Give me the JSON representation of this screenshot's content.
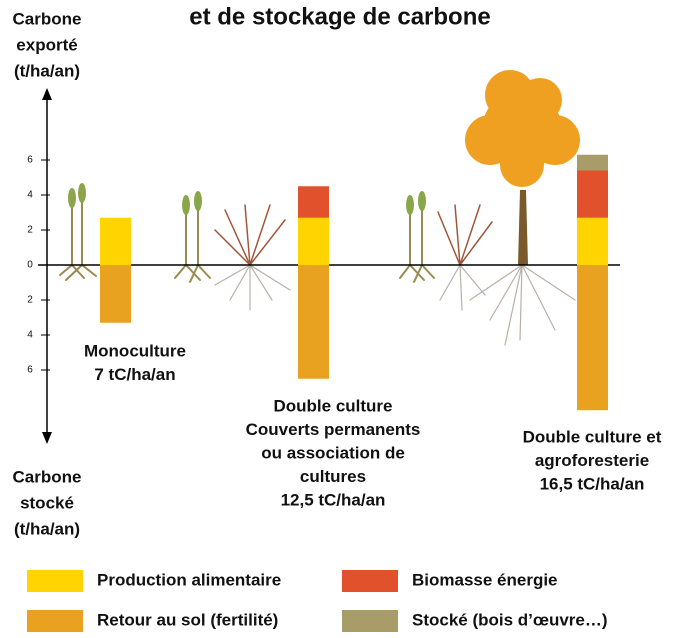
{
  "chart_data": {
    "type": "bar",
    "title": "et de stockage de carbone",
    "y_label_top": [
      "Carbone",
      "exporté",
      "(t/ha/an)"
    ],
    "y_label_bottom": [
      "Carbone",
      "stocké",
      "(t/ha/an)"
    ],
    "categories": [
      [
        "Monoculture",
        "7 tC/ha/an"
      ],
      [
        "Double culture",
        "Couverts permanents",
        "ou association de",
        "cultures",
        "12,5 tC/ha/an"
      ],
      [
        "Double culture et",
        "agroforesterie",
        "16,5 tC/ha/an"
      ]
    ],
    "series": [
      {
        "name": "Production alimentaire",
        "color": "#ffd400",
        "values": [
          2.7,
          2.7,
          2.7
        ]
      },
      {
        "name": "Retour au sol (fertilité)",
        "color": "#e9a21f",
        "values": [
          -3.3,
          -6.5,
          -8.3
        ]
      },
      {
        "name": "Biomasse énergie",
        "color": "#e1522c",
        "values": [
          null,
          1.8,
          2.7
        ]
      },
      {
        "name": "Stocké (bois d’œuvre…)",
        "color": "#a89c68",
        "values": [
          null,
          null,
          0.9
        ]
      }
    ],
    "ylim": [
      -10,
      10
    ],
    "yticks": [
      {
        "value": -6,
        "label": "6"
      },
      {
        "value": -4,
        "label": "4"
      },
      {
        "value": -2,
        "label": "2"
      },
      0,
      2,
      4,
      6
    ]
  }
}
